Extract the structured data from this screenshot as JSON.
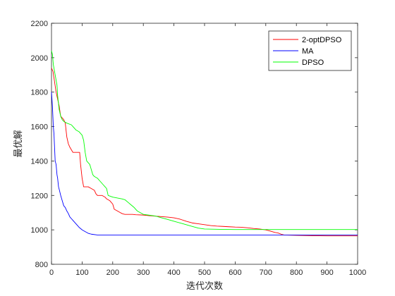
{
  "chart_data": {
    "type": "line",
    "title": "",
    "xlabel": "迭代次数",
    "ylabel": "最优解",
    "xlim": [
      0,
      1000
    ],
    "ylim": [
      800,
      2200
    ],
    "xticks": [
      0,
      100,
      200,
      300,
      400,
      500,
      600,
      700,
      800,
      900,
      1000
    ],
    "yticks": [
      800,
      1000,
      1200,
      1400,
      1600,
      1800,
      2000,
      2200
    ],
    "grid": false,
    "legend_position": "top-right",
    "series": [
      {
        "name": "2-optDPSO",
        "color": "#ff0000",
        "points": [
          [
            0,
            1940
          ],
          [
            5,
            1920
          ],
          [
            10,
            1860
          ],
          [
            15,
            1800
          ],
          [
            20,
            1760
          ],
          [
            25,
            1720
          ],
          [
            30,
            1660
          ],
          [
            40,
            1640
          ],
          [
            45,
            1620
          ],
          [
            50,
            1540
          ],
          [
            55,
            1500
          ],
          [
            60,
            1480
          ],
          [
            70,
            1450
          ],
          [
            85,
            1450
          ],
          [
            92,
            1450
          ],
          [
            95,
            1380
          ],
          [
            100,
            1300
          ],
          [
            105,
            1250
          ],
          [
            120,
            1250
          ],
          [
            130,
            1240
          ],
          [
            140,
            1230
          ],
          [
            145,
            1210
          ],
          [
            150,
            1200
          ],
          [
            165,
            1200
          ],
          [
            170,
            1195
          ],
          [
            175,
            1190
          ],
          [
            180,
            1180
          ],
          [
            190,
            1170
          ],
          [
            195,
            1160
          ],
          [
            200,
            1150
          ],
          [
            205,
            1120
          ],
          [
            215,
            1110
          ],
          [
            220,
            1105
          ],
          [
            225,
            1100
          ],
          [
            230,
            1095
          ],
          [
            235,
            1092
          ],
          [
            240,
            1090
          ],
          [
            250,
            1090
          ],
          [
            265,
            1090
          ],
          [
            275,
            1088
          ],
          [
            300,
            1086
          ],
          [
            320,
            1082
          ],
          [
            350,
            1078
          ],
          [
            380,
            1074
          ],
          [
            400,
            1070
          ],
          [
            420,
            1062
          ],
          [
            440,
            1050
          ],
          [
            460,
            1040
          ],
          [
            480,
            1035
          ],
          [
            500,
            1030
          ],
          [
            520,
            1025
          ],
          [
            540,
            1022
          ],
          [
            560,
            1020
          ],
          [
            580,
            1018
          ],
          [
            600,
            1016
          ],
          [
            620,
            1015
          ],
          [
            640,
            1012
          ],
          [
            660,
            1008
          ],
          [
            680,
            1005
          ],
          [
            700,
            1000
          ],
          [
            710,
            995
          ],
          [
            720,
            990
          ],
          [
            730,
            985
          ],
          [
            740,
            982
          ],
          [
            750,
            975
          ],
          [
            760,
            970
          ],
          [
            800,
            968
          ],
          [
            850,
            966
          ],
          [
            900,
            965
          ],
          [
            950,
            965
          ],
          [
            1000,
            965
          ]
        ]
      },
      {
        "name": "MA",
        "color": "#0000ff",
        "points": [
          [
            0,
            1800
          ],
          [
            3,
            1720
          ],
          [
            6,
            1600
          ],
          [
            8,
            1560
          ],
          [
            10,
            1480
          ],
          [
            12,
            1400
          ],
          [
            15,
            1380
          ],
          [
            18,
            1320
          ],
          [
            20,
            1300
          ],
          [
            23,
            1250
          ],
          [
            26,
            1230
          ],
          [
            30,
            1200
          ],
          [
            35,
            1170
          ],
          [
            40,
            1140
          ],
          [
            45,
            1130
          ],
          [
            50,
            1110
          ],
          [
            55,
            1095
          ],
          [
            60,
            1075
          ],
          [
            65,
            1065
          ],
          [
            70,
            1055
          ],
          [
            80,
            1035
          ],
          [
            90,
            1015
          ],
          [
            100,
            1000
          ],
          [
            110,
            990
          ],
          [
            120,
            980
          ],
          [
            130,
            975
          ],
          [
            150,
            970
          ],
          [
            200,
            970
          ],
          [
            300,
            970
          ],
          [
            400,
            970
          ],
          [
            500,
            970
          ],
          [
            600,
            970
          ],
          [
            700,
            970
          ],
          [
            800,
            970
          ],
          [
            900,
            970
          ],
          [
            1000,
            970
          ]
        ]
      },
      {
        "name": "DPSO",
        "color": "#00ff00",
        "points": [
          [
            0,
            2040
          ],
          [
            3,
            2020
          ],
          [
            6,
            1960
          ],
          [
            10,
            1920
          ],
          [
            14,
            1880
          ],
          [
            18,
            1840
          ],
          [
            20,
            1780
          ],
          [
            25,
            1700
          ],
          [
            30,
            1660
          ],
          [
            35,
            1640
          ],
          [
            40,
            1630
          ],
          [
            50,
            1620
          ],
          [
            65,
            1610
          ],
          [
            70,
            1600
          ],
          [
            80,
            1580
          ],
          [
            90,
            1570
          ],
          [
            100,
            1550
          ],
          [
            105,
            1520
          ],
          [
            110,
            1450
          ],
          [
            115,
            1400
          ],
          [
            125,
            1380
          ],
          [
            130,
            1350
          ],
          [
            135,
            1320
          ],
          [
            140,
            1310
          ],
          [
            150,
            1300
          ],
          [
            160,
            1280
          ],
          [
            170,
            1260
          ],
          [
            175,
            1250
          ],
          [
            180,
            1240
          ],
          [
            185,
            1200
          ],
          [
            200,
            1190
          ],
          [
            215,
            1185
          ],
          [
            230,
            1180
          ],
          [
            240,
            1175
          ],
          [
            250,
            1160
          ],
          [
            260,
            1145
          ],
          [
            270,
            1130
          ],
          [
            280,
            1110
          ],
          [
            290,
            1100
          ],
          [
            300,
            1090
          ],
          [
            320,
            1085
          ],
          [
            340,
            1080
          ],
          [
            360,
            1070
          ],
          [
            380,
            1060
          ],
          [
            400,
            1050
          ],
          [
            420,
            1040
          ],
          [
            440,
            1030
          ],
          [
            460,
            1020
          ],
          [
            480,
            1010
          ],
          [
            500,
            1005
          ],
          [
            550,
            1003
          ],
          [
            600,
            1002
          ],
          [
            700,
            1002
          ],
          [
            800,
            1002
          ],
          [
            900,
            1002
          ],
          [
            1000,
            1002
          ]
        ]
      }
    ]
  }
}
